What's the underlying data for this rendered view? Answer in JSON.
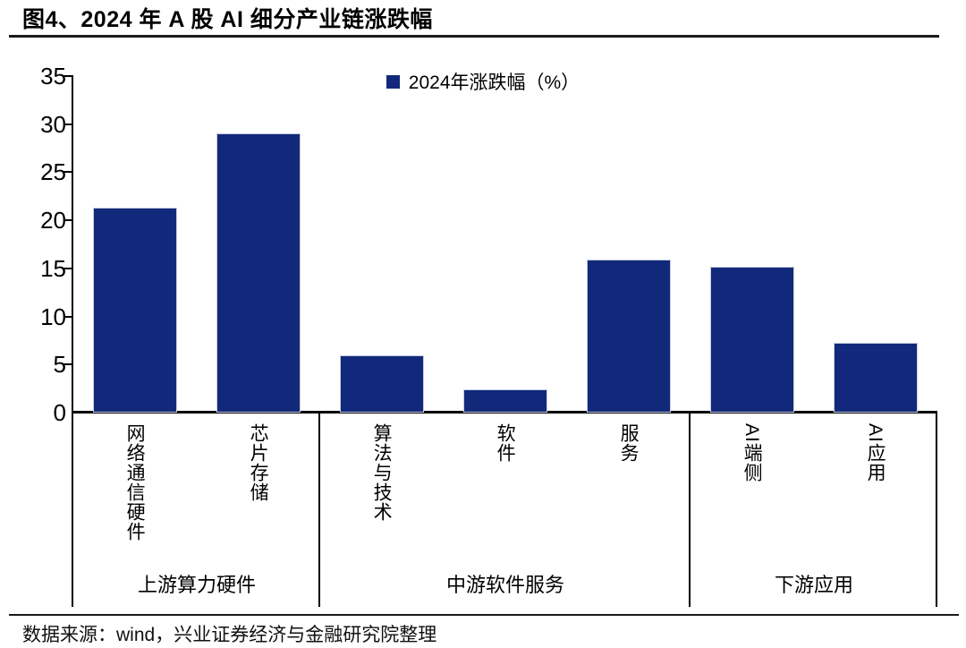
{
  "title": "图4、2024 年 A 股 AI 细分产业链涨跌幅",
  "source": "数据来源：wind，兴业证券经济与金融研究院整理",
  "chart_data": {
    "type": "bar",
    "title": "图4、2024 年 A 股 AI 细分产业链涨跌幅",
    "legend": {
      "label": "2024年涨跌幅（%）",
      "position": "top-center"
    },
    "categories": [
      "网络通信硬件",
      "芯片存储",
      "算法与技术",
      "软件",
      "服务",
      "AI端侧",
      "AI应用"
    ],
    "values": [
      21.3,
      29.0,
      6.0,
      2.4,
      15.9,
      15.2,
      7.3
    ],
    "groups": [
      {
        "label": "上游算力硬件",
        "from": 0,
        "to": 1
      },
      {
        "label": "中游软件服务",
        "from": 2,
        "to": 4
      },
      {
        "label": "下游应用",
        "from": 5,
        "to": 6
      }
    ],
    "ylim": [
      0,
      35
    ],
    "yticks": [
      0,
      5,
      10,
      15,
      20,
      25,
      30,
      35
    ],
    "ylabel": "",
    "xlabel": "",
    "grid": false,
    "bar_color": "#12297B",
    "axis_color": "#000000"
  }
}
